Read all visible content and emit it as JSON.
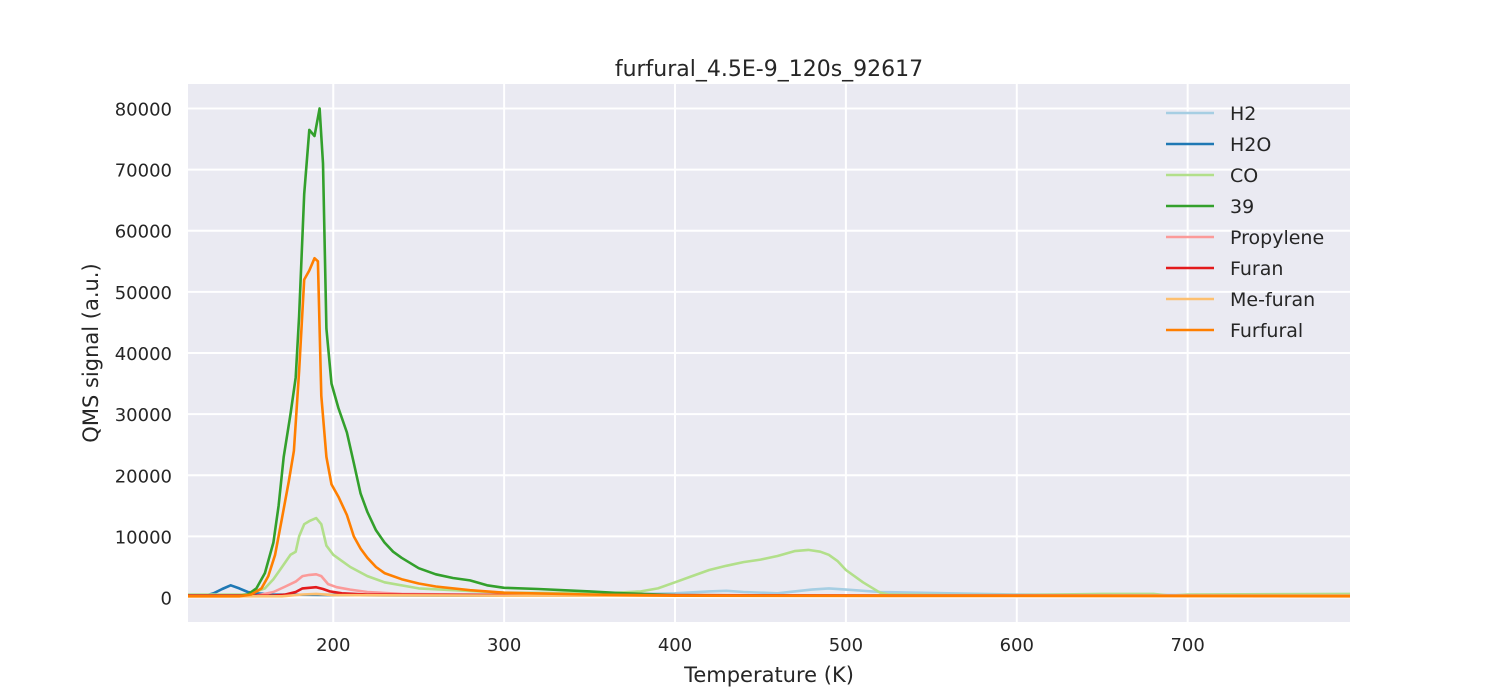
{
  "chart_data": {
    "type": "line",
    "title": "furfural_4.5E-9_120s_92617",
    "xlabel": "Temperature (K)",
    "ylabel": "QMS signal (a.u.)",
    "xlim": [
      115,
      795
    ],
    "ylim": [
      -4000,
      84000
    ],
    "xticks": [
      200,
      300,
      400,
      500,
      600,
      700
    ],
    "yticks": [
      0,
      10000,
      20000,
      30000,
      40000,
      50000,
      60000,
      70000,
      80000
    ],
    "grid": true,
    "legend_position": "top-right",
    "series": [
      {
        "name": "H2",
        "color": "#a6cee3",
        "points": [
          [
            115,
            300
          ],
          [
            200,
            500
          ],
          [
            300,
            500
          ],
          [
            380,
            600
          ],
          [
            400,
            700
          ],
          [
            420,
            1000
          ],
          [
            430,
            1100
          ],
          [
            440,
            900
          ],
          [
            460,
            700
          ],
          [
            480,
            1300
          ],
          [
            490,
            1500
          ],
          [
            500,
            1300
          ],
          [
            520,
            900
          ],
          [
            560,
            700
          ],
          [
            600,
            500
          ],
          [
            700,
            400
          ],
          [
            795,
            400
          ]
        ]
      },
      {
        "name": "H2O",
        "color": "#1f78b4",
        "points": [
          [
            115,
            300
          ],
          [
            125,
            300
          ],
          [
            130,
            700
          ],
          [
            135,
            1400
          ],
          [
            140,
            2000
          ],
          [
            145,
            1500
          ],
          [
            150,
            900
          ],
          [
            155,
            700
          ],
          [
            165,
            500
          ],
          [
            200,
            400
          ],
          [
            300,
            300
          ],
          [
            795,
            300
          ]
        ]
      },
      {
        "name": "CO",
        "color": "#b2df8a",
        "points": [
          [
            115,
            500
          ],
          [
            150,
            500
          ],
          [
            160,
            1500
          ],
          [
            165,
            3000
          ],
          [
            170,
            5000
          ],
          [
            175,
            7000
          ],
          [
            178,
            7500
          ],
          [
            180,
            10000
          ],
          [
            183,
            12000
          ],
          [
            186,
            12500
          ],
          [
            190,
            13000
          ],
          [
            193,
            12000
          ],
          [
            196,
            8500
          ],
          [
            200,
            7000
          ],
          [
            205,
            6000
          ],
          [
            210,
            5000
          ],
          [
            220,
            3500
          ],
          [
            230,
            2500
          ],
          [
            250,
            1500
          ],
          [
            300,
            800
          ],
          [
            360,
            700
          ],
          [
            380,
            1000
          ],
          [
            390,
            1500
          ],
          [
            400,
            2500
          ],
          [
            410,
            3500
          ],
          [
            420,
            4500
          ],
          [
            430,
            5200
          ],
          [
            440,
            5800
          ],
          [
            450,
            6200
          ],
          [
            460,
            6800
          ],
          [
            470,
            7600
          ],
          [
            478,
            7800
          ],
          [
            485,
            7500
          ],
          [
            490,
            7000
          ],
          [
            495,
            6000
          ],
          [
            500,
            4500
          ],
          [
            510,
            2500
          ],
          [
            520,
            800
          ],
          [
            525,
            500
          ],
          [
            560,
            400
          ],
          [
            600,
            400
          ],
          [
            650,
            600
          ],
          [
            680,
            600
          ],
          [
            690,
            300
          ],
          [
            700,
            500
          ],
          [
            795,
            600
          ]
        ]
      },
      {
        "name": "39",
        "color": "#33a02c",
        "points": [
          [
            115,
            300
          ],
          [
            145,
            300
          ],
          [
            150,
            500
          ],
          [
            155,
            1500
          ],
          [
            160,
            4000
          ],
          [
            165,
            9000
          ],
          [
            168,
            15000
          ],
          [
            171,
            23000
          ],
          [
            175,
            30000
          ],
          [
            178,
            36000
          ],
          [
            180,
            46000
          ],
          [
            183,
            66000
          ],
          [
            186,
            76500
          ],
          [
            189,
            75500
          ],
          [
            192,
            80000
          ],
          [
            194,
            71000
          ],
          [
            196,
            44000
          ],
          [
            199,
            35000
          ],
          [
            203,
            31000
          ],
          [
            208,
            27000
          ],
          [
            212,
            22000
          ],
          [
            216,
            17000
          ],
          [
            220,
            14000
          ],
          [
            225,
            11000
          ],
          [
            230,
            9000
          ],
          [
            235,
            7500
          ],
          [
            240,
            6500
          ],
          [
            250,
            4800
          ],
          [
            260,
            3800
          ],
          [
            270,
            3200
          ],
          [
            280,
            2800
          ],
          [
            290,
            2000
          ],
          [
            300,
            1600
          ],
          [
            320,
            1400
          ],
          [
            350,
            1000
          ],
          [
            370,
            700
          ],
          [
            400,
            400
          ],
          [
            500,
            300
          ],
          [
            795,
            300
          ]
        ]
      },
      {
        "name": "Propylene",
        "color": "#fb9a99",
        "points": [
          [
            115,
            300
          ],
          [
            155,
            300
          ],
          [
            165,
            900
          ],
          [
            172,
            1800
          ],
          [
            178,
            2600
          ],
          [
            182,
            3500
          ],
          [
            186,
            3700
          ],
          [
            190,
            3800
          ],
          [
            193,
            3500
          ],
          [
            197,
            2200
          ],
          [
            202,
            1700
          ],
          [
            210,
            1300
          ],
          [
            220,
            900
          ],
          [
            240,
            600
          ],
          [
            300,
            400
          ],
          [
            795,
            300
          ]
        ]
      },
      {
        "name": "Furan",
        "color": "#e31a1c",
        "points": [
          [
            115,
            300
          ],
          [
            165,
            300
          ],
          [
            172,
            500
          ],
          [
            178,
            900
          ],
          [
            182,
            1500
          ],
          [
            186,
            1600
          ],
          [
            190,
            1700
          ],
          [
            194,
            1400
          ],
          [
            198,
            1000
          ],
          [
            205,
            700
          ],
          [
            220,
            500
          ],
          [
            300,
            400
          ],
          [
            795,
            300
          ]
        ]
      },
      {
        "name": "Me-furan",
        "color": "#fdbf6f",
        "points": [
          [
            115,
            200
          ],
          [
            170,
            200
          ],
          [
            182,
            500
          ],
          [
            190,
            600
          ],
          [
            200,
            400
          ],
          [
            300,
            300
          ],
          [
            795,
            300
          ]
        ]
      },
      {
        "name": "Furfural",
        "color": "#ff7f00",
        "points": [
          [
            115,
            200
          ],
          [
            145,
            200
          ],
          [
            152,
            500
          ],
          [
            158,
            1500
          ],
          [
            162,
            3500
          ],
          [
            166,
            7000
          ],
          [
            170,
            13000
          ],
          [
            174,
            19000
          ],
          [
            177,
            24000
          ],
          [
            180,
            37000
          ],
          [
            183,
            52000
          ],
          [
            186,
            53500
          ],
          [
            189,
            55500
          ],
          [
            191,
            55000
          ],
          [
            193,
            33000
          ],
          [
            196,
            23000
          ],
          [
            199,
            18500
          ],
          [
            203,
            16500
          ],
          [
            208,
            13500
          ],
          [
            212,
            10000
          ],
          [
            216,
            8000
          ],
          [
            220,
            6500
          ],
          [
            225,
            5000
          ],
          [
            230,
            4000
          ],
          [
            240,
            3000
          ],
          [
            250,
            2300
          ],
          [
            260,
            1800
          ],
          [
            280,
            1200
          ],
          [
            300,
            800
          ],
          [
            350,
            500
          ],
          [
            400,
            300
          ],
          [
            795,
            200
          ]
        ]
      }
    ]
  }
}
